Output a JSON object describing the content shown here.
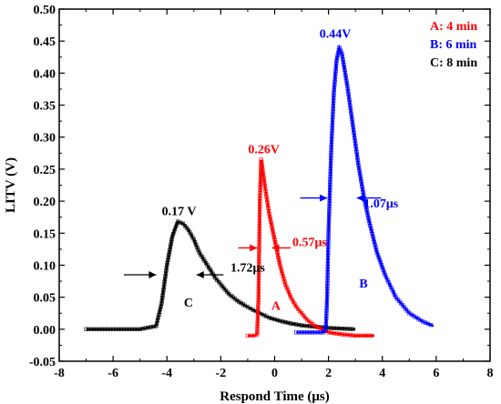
{
  "chart_data": {
    "type": "line",
    "xlabel": "Respond Time (μs)",
    "ylabel": "LITV (V)",
    "xlim": [
      -8,
      8
    ],
    "ylim": [
      -0.05,
      0.5
    ],
    "xticks": [
      -8,
      -6,
      -4,
      -2,
      0,
      2,
      4,
      6,
      8
    ],
    "xtick_labels": [
      "-8",
      "-6",
      "-4",
      "-2",
      "0",
      "2",
      "4",
      "6",
      "8"
    ],
    "yticks": [
      -0.05,
      0,
      0.05,
      0.1,
      0.15,
      0.2,
      0.25,
      0.3,
      0.35,
      0.4,
      0.45,
      0.5
    ],
    "ytick_labels": [
      "-0.05",
      "0.00",
      "0.05",
      "0.10",
      "0.15",
      "0.20",
      "0.25",
      "0.30",
      "0.35",
      "0.40",
      "0.45",
      "0.50"
    ],
    "grid": false,
    "legend_position": "top-right",
    "legend": [
      {
        "text": "A: 4 min",
        "color": "#ff0000"
      },
      {
        "text": "B: 6 min",
        "color": "#0000ff"
      },
      {
        "text": "C: 8 min",
        "color": "#000000"
      }
    ],
    "series": [
      {
        "label": "C",
        "color": "#000000",
        "x": [
          -7.0,
          -5.0,
          -4.4,
          -4.2,
          -4.0,
          -3.8,
          -3.6,
          -3.4,
          -3.2,
          -3.0,
          -2.8,
          -2.5,
          -2.2,
          -2.0,
          -1.7,
          -1.4,
          -1.1,
          -0.8,
          -0.5,
          -0.2,
          0.2,
          0.6,
          1.0,
          1.5,
          2.0,
          2.5,
          3.0
        ],
        "y": [
          0.0,
          0.0,
          0.005,
          0.04,
          0.1,
          0.145,
          0.168,
          0.165,
          0.155,
          0.14,
          0.12,
          0.1,
          0.08,
          0.07,
          0.055,
          0.045,
          0.037,
          0.03,
          0.024,
          0.018,
          0.013,
          0.009,
          0.006,
          0.004,
          0.002,
          0.001,
          0.0
        ]
      },
      {
        "label": "A",
        "color": "#ff0000",
        "x": [
          -1.0,
          -0.75,
          -0.65,
          -0.6,
          -0.55,
          -0.5,
          -0.45,
          -0.35,
          -0.2,
          0.0,
          0.2,
          0.4,
          0.6,
          0.8,
          1.0,
          1.2,
          1.5,
          2.0,
          2.5,
          3.0,
          3.7
        ],
        "y": [
          -0.01,
          -0.01,
          -0.008,
          0.05,
          0.2,
          0.265,
          0.25,
          0.22,
          0.18,
          0.14,
          0.1,
          0.07,
          0.05,
          0.035,
          0.025,
          0.015,
          0.005,
          -0.005,
          -0.008,
          -0.01,
          -0.01
        ]
      },
      {
        "label": "B",
        "color": "#0000ff",
        "x": [
          0.8,
          1.5,
          1.8,
          1.9,
          1.95,
          2.0,
          2.1,
          2.2,
          2.3,
          2.4,
          2.5,
          2.7,
          2.9,
          3.1,
          3.3,
          3.5,
          3.8,
          4.1,
          4.5,
          5.0,
          5.5,
          5.9
        ],
        "y": [
          -0.005,
          -0.005,
          -0.005,
          0.0,
          0.05,
          0.15,
          0.28,
          0.37,
          0.42,
          0.44,
          0.43,
          0.38,
          0.32,
          0.26,
          0.21,
          0.17,
          0.12,
          0.085,
          0.05,
          0.025,
          0.012,
          0.005
        ]
      }
    ],
    "annotations": {
      "peak_c": {
        "text": "0.17 V",
        "color": "#000000",
        "x": -3.55,
        "y": 0.178
      },
      "width_c": {
        "text": "1.72μs",
        "color": "#000000",
        "x": -1.0,
        "y": 0.09
      },
      "width_c_y": 0.085,
      "width_c_left": -4.4,
      "width_c_right": -2.9,
      "curve_c_label": {
        "text": "C",
        "color": "#000000",
        "x": -3.2,
        "y": 0.035
      },
      "peak_a": {
        "text": "0.26V",
        "color": "#ff0000",
        "x": -0.4,
        "y": 0.275
      },
      "width_a": {
        "text": "0.57μs",
        "color": "#ff0000",
        "x": 1.3,
        "y": 0.13
      },
      "width_a_y": 0.127,
      "width_a_left": -0.65,
      "width_a_right": -0.1,
      "curve_a_label": {
        "text": "A",
        "color": "#ff0000",
        "x": 0.05,
        "y": 0.03
      },
      "peak_b": {
        "text": "0.44V",
        "color": "#0000ff",
        "x": 2.25,
        "y": 0.455
      },
      "width_b": {
        "text": "1.07μs",
        "color": "#0000ff",
        "x": 3.95,
        "y": 0.19
      },
      "width_b_y": 0.205,
      "width_b_left": 1.95,
      "width_b_right": 3.05,
      "curve_b_label": {
        "text": "B",
        "color": "#0000ff",
        "x": 3.3,
        "y": 0.065
      }
    }
  }
}
